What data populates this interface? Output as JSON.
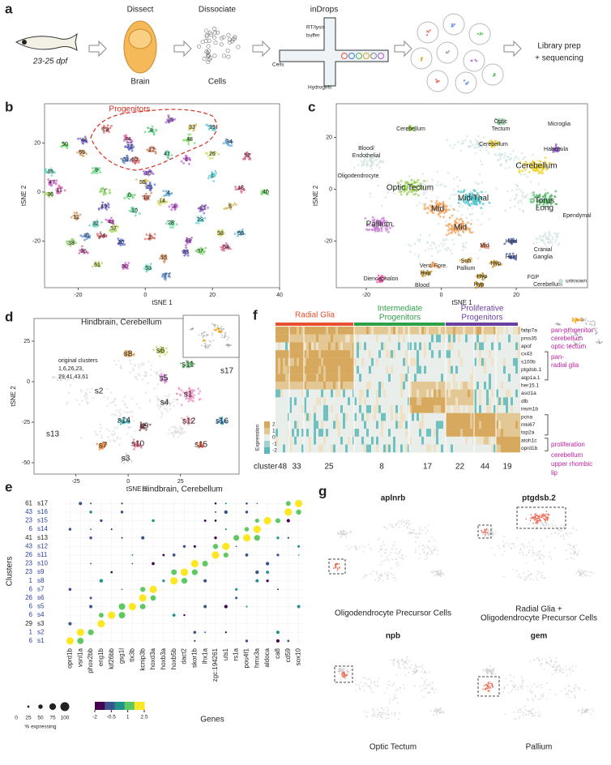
{
  "panel_a": {
    "letter": "a",
    "age": "23-25 dpf",
    "dissect": "Dissect",
    "brain": "Brain",
    "dissociate": "Dissociate",
    "cells": "Cells",
    "indrops": "inDrops",
    "buffer": [
      "RT/lysis",
      "buffer"
    ],
    "device_cells": "Cells",
    "hydrogels": "Hydrogels",
    "output": [
      "Library prep",
      "+ sequencing"
    ]
  },
  "panel_b": {
    "letter": "b",
    "title": "Progenitors",
    "xlabel": "tSNE 1",
    "ylabel": "tSNE 2",
    "xlim": [
      -30,
      40
    ],
    "ylim": [
      -39,
      36
    ],
    "xticks": [
      -20,
      0,
      20,
      40
    ],
    "yticks": [
      -20,
      0,
      20
    ],
    "clusters": [
      "19",
      "8",
      "25",
      "33",
      "39",
      "44",
      "48",
      "22",
      "17",
      "41",
      "6",
      "26",
      "34",
      "52",
      "50",
      "46",
      "59",
      "45",
      "47",
      "36",
      "61",
      "60",
      "9",
      "16",
      "55",
      "1",
      "11",
      "7",
      "21",
      "13",
      "10",
      "3",
      "14",
      "4",
      "18",
      "40",
      "49",
      "12",
      "32",
      "42",
      "57",
      "31",
      "24",
      "0",
      "62",
      "5",
      "29",
      "35",
      "38",
      "20",
      "2",
      "28",
      "43",
      "58",
      "56",
      "54",
      "37",
      "23",
      "15",
      "53",
      "30",
      "51",
      "27"
    ]
  },
  "panel_c": {
    "letter": "c",
    "xlabel": "tSNE 1",
    "ylabel": "tSNE 2",
    "xlim": [
      -28,
      39
    ],
    "ylim": [
      -38,
      33
    ],
    "xticks": [
      -20,
      0,
      20
    ],
    "yticks": [
      -20,
      0,
      20
    ],
    "regions": [
      [
        "Cerebellum"
      ],
      [
        "Optic",
        "Tectum"
      ],
      [
        "Microglia"
      ],
      [
        "Blood/",
        "Endothelial"
      ],
      [
        "Cerebellum"
      ],
      [
        "Habenula"
      ],
      [
        "Cerebellum"
      ],
      [
        "Oligodendrocyte"
      ],
      [
        "Optic Tectum"
      ],
      [
        "Mid/Thal"
      ],
      [
        "Torus",
        "Long"
      ],
      [
        "Ependymal"
      ],
      [
        "Mid"
      ],
      [
        "Pallium"
      ],
      [
        "Mid"
      ],
      [
        "Mid"
      ],
      [
        "Hind"
      ],
      [
        "Hind"
      ],
      [
        "Cranial",
        "Ganglia"
      ],
      [
        "Vent. Fore."
      ],
      [
        "Sub",
        "Pallium"
      ],
      [
        "Hyp"
      ],
      [
        "Hyp"
      ],
      [
        "Hyp"
      ],
      [
        "Diencephalon"
      ],
      [
        "FGP"
      ],
      [
        "Blood"
      ],
      [
        "Hyp"
      ],
      [
        "Cerebellum"
      ]
    ],
    "legend": "unknown"
  },
  "panel_d": {
    "letter": "d",
    "title": "Hindbrain,  Cerebellum",
    "note": [
      "original clusters",
      "1,6,26,23,",
      "29,41,43,61"
    ],
    "xlabel": "tSNE 1",
    "ylabel": "tSNE 2",
    "xlim": [
      -45,
      53
    ],
    "ylim": [
      -57,
      39
    ],
    "xticks": [
      -25,
      0,
      25
    ],
    "yticks": [
      25,
      0,
      -25,
      -50
    ],
    "subclusters": [
      "s8",
      "s6",
      "s11",
      "s17",
      "s5",
      "s2",
      "s1",
      "s4",
      "s13",
      "s7",
      "s14",
      "s9",
      "s12",
      "s16",
      "s10",
      "s15",
      "s3"
    ]
  },
  "panel_e": {
    "letter": "e",
    "title": "Hindbrain, Cerebellum",
    "ylabel": "Clusters",
    "xlabel": "Genes",
    "rows": [
      {
        "cluster": 6,
        "sub": "s1"
      },
      {
        "cluster": 1,
        "sub": "s2"
      },
      {
        "cluster": 29,
        "sub": "s3"
      },
      {
        "cluster": 6,
        "sub": "s4"
      },
      {
        "cluster": 6,
        "sub": "s5"
      },
      {
        "cluster": 26,
        "sub": "s6"
      },
      {
        "cluster": 6,
        "sub": "s7"
      },
      {
        "cluster": 1,
        "sub": "s8"
      },
      {
        "cluster": 23,
        "sub": "s9"
      },
      {
        "cluster": 23,
        "sub": "s10"
      },
      {
        "cluster": 26,
        "sub": "s11"
      },
      {
        "cluster": 43,
        "sub": "s12"
      },
      {
        "cluster": 41,
        "sub": "s13"
      },
      {
        "cluster": 6,
        "sub": "s14"
      },
      {
        "cluster": 23,
        "sub": "s15"
      },
      {
        "cluster": 43,
        "sub": "s16"
      },
      {
        "cluster": 61,
        "sub": "s17"
      }
    ],
    "genes": [
      "oprd1b",
      "vsnl1a",
      "phox2bb",
      "eng1b",
      "kif26bb",
      "gsg1l",
      "tlx3b",
      "kcnip3b",
      "hoxd3a",
      "hoxb3a",
      "hoxb5b",
      "dact2",
      "skor1b",
      "lhx1a",
      "zgc:194261",
      "uts1",
      "rs1a",
      "pou4f1",
      "hmx3a",
      "aldoca",
      "ca8",
      "cd59",
      "sox10"
    ],
    "size_legend": {
      "title": "% expressing",
      "ticks": [
        0,
        25,
        50,
        75,
        100
      ]
    },
    "color_legend": {
      "ticks": [
        -2,
        -0.5,
        1,
        2.5
      ]
    }
  },
  "panel_f": {
    "letter": "f",
    "groups": [
      [
        "Radial Glia"
      ],
      [
        "Intermediate",
        "Progenitors"
      ],
      [
        "Proliferative",
        "Progenitors"
      ]
    ],
    "genes": [
      "fabp7a",
      "prss35",
      "apof",
      "cx43",
      "s100b",
      "ptgdsb.1",
      "aqp1a.1",
      "her15.1",
      "ascl1a",
      "dlb",
      "insm1b",
      "pcna",
      "mki67",
      "top2a",
      "atoh1c",
      "oprd1b"
    ],
    "cluster_label": "cluster",
    "clusters": [
      48,
      33,
      25,
      8,
      17,
      22,
      44,
      19
    ],
    "legend_title": "Expression",
    "legend_ticks": [
      2,
      1,
      0,
      -1,
      -2
    ],
    "annotations": [
      [
        "pan-progenitor",
        "cerebellum",
        "optic tectum"
      ],
      [
        "pan-",
        "radial glia"
      ],
      [
        "proliferation"
      ],
      [
        "cerebellum",
        "upper rhombic",
        "lip"
      ]
    ]
  },
  "panel_g": {
    "letter": "g",
    "plots": [
      {
        "gene": "aplnrb",
        "caption": [
          "Oligodendrocyte Precursor Cells"
        ]
      },
      {
        "gene": "ptgdsb.2",
        "caption": [
          "Radial Glia +",
          "Oligodendrocyte Precursor Cells"
        ]
      },
      {
        "gene": "npb",
        "caption": [
          "Optic Tectum"
        ]
      },
      {
        "gene": "gem",
        "caption": [
          "Pallium"
        ]
      }
    ]
  }
}
